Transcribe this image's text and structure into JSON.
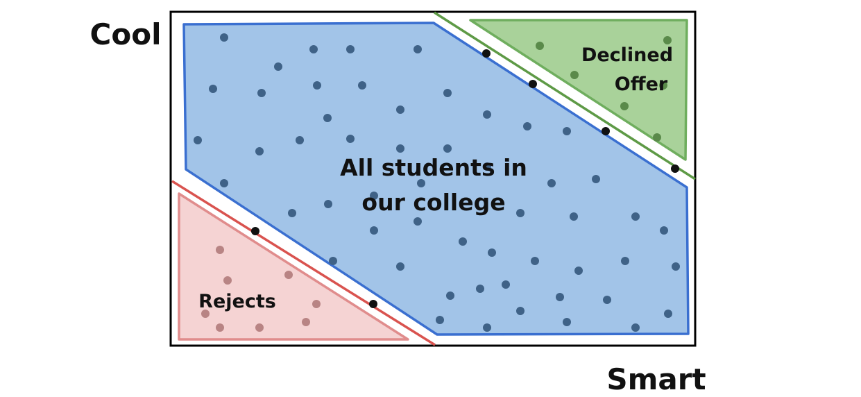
{
  "axes": {
    "y_label": "Cool",
    "x_label": "Smart"
  },
  "regions": {
    "college": {
      "label_line1": "All students in",
      "label_line2": "our college",
      "fill": "#a2c4e8",
      "stroke": "#3a6fd0"
    },
    "declined": {
      "label_line1": "Declined",
      "label_line2": "Offer",
      "fill": "#a9d29a",
      "stroke": "#6fae5e"
    },
    "rejects": {
      "label": "Rejects",
      "fill": "#f5d3d3",
      "stroke": "#e08c8c"
    }
  },
  "colors": {
    "frame": "#000000",
    "blue_dot": "#3f6287",
    "green_dot": "#5a8a4a",
    "red_dot": "#b88484",
    "edge_dot": "#111111",
    "green_line": "#5e9a46",
    "red_line": "#d9534f"
  }
}
